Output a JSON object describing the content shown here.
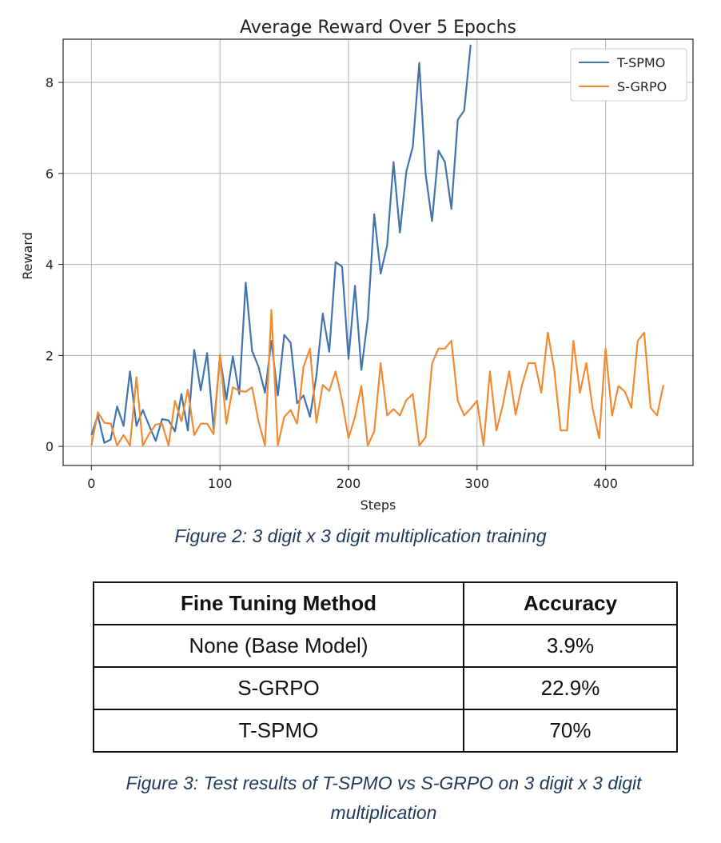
{
  "chart_data": {
    "type": "line",
    "title": "Average Reward Over 5 Epochs",
    "xlabel": "Steps",
    "ylabel": "Reward",
    "xlim": [
      -22,
      468
    ],
    "ylim": [
      -0.42,
      8.95
    ],
    "xticks": [
      0,
      100,
      200,
      300,
      400
    ],
    "yticks": [
      0,
      2,
      4,
      6,
      8
    ],
    "grid": true,
    "legend": "top-right",
    "series": [
      {
        "name": "T-SPMO",
        "color": "#3f74b0",
        "x": [
          0,
          5,
          10,
          15,
          20,
          25,
          30,
          35,
          40,
          45,
          50,
          55,
          60,
          65,
          70,
          75,
          80,
          85,
          90,
          95,
          100,
          105,
          110,
          115,
          120,
          125,
          130,
          135,
          140,
          145,
          150,
          155,
          160,
          165,
          170,
          175,
          180,
          185,
          190,
          195,
          200,
          205,
          210,
          215,
          220,
          225,
          230,
          235,
          240,
          245,
          250,
          255,
          260,
          265,
          270,
          275,
          280,
          285,
          290,
          295
        ],
        "values": [
          0.25,
          0.68,
          0.08,
          0.15,
          0.88,
          0.45,
          1.65,
          0.45,
          0.8,
          0.45,
          0.12,
          0.6,
          0.57,
          0.33,
          1.15,
          0.35,
          2.12,
          1.23,
          2.05,
          0.38,
          1.98,
          1.03,
          1.98,
          1.15,
          3.6,
          2.1,
          1.75,
          1.18,
          2.32,
          1.12,
          2.45,
          2.28,
          0.95,
          1.12,
          0.65,
          1.55,
          2.92,
          2.08,
          4.05,
          3.95,
          1.92,
          3.53,
          1.68,
          2.8,
          5.1,
          3.8,
          4.42,
          6.25,
          4.7,
          6.05,
          6.58,
          8.43,
          5.98,
          4.95,
          6.5,
          6.25,
          5.22,
          7.18,
          7.38,
          8.83
        ]
      },
      {
        "name": "S-GRPO",
        "color": "#f28a32",
        "x": [
          0,
          5,
          10,
          15,
          20,
          25,
          30,
          35,
          40,
          45,
          50,
          55,
          60,
          65,
          70,
          75,
          80,
          85,
          90,
          95,
          100,
          105,
          110,
          115,
          120,
          125,
          130,
          135,
          140,
          145,
          150,
          155,
          160,
          165,
          170,
          175,
          180,
          185,
          190,
          195,
          200,
          205,
          210,
          215,
          220,
          225,
          230,
          235,
          240,
          245,
          250,
          255,
          260,
          265,
          270,
          275,
          280,
          285,
          290,
          295,
          300,
          305,
          310,
          315,
          320,
          325,
          330,
          335,
          340,
          345,
          350,
          355,
          360,
          365,
          370,
          375,
          380,
          385,
          390,
          395,
          400,
          405,
          410,
          415,
          420,
          425,
          430,
          435,
          440,
          445
        ],
        "values": [
          0.02,
          0.75,
          0.52,
          0.5,
          0.02,
          0.25,
          0.02,
          1.52,
          0.02,
          0.28,
          0.48,
          0.5,
          0.02,
          1.0,
          0.55,
          1.25,
          0.25,
          0.5,
          0.5,
          0.27,
          2.02,
          0.5,
          1.3,
          1.22,
          1.2,
          1.3,
          0.55,
          0.02,
          3.0,
          0.02,
          0.65,
          0.8,
          0.5,
          1.75,
          2.15,
          0.52,
          1.35,
          1.22,
          1.65,
          1.0,
          0.18,
          0.65,
          1.33,
          0.02,
          0.33,
          1.83,
          0.68,
          0.82,
          0.68,
          1.02,
          1.15,
          0.02,
          0.2,
          1.82,
          2.15,
          2.15,
          2.32,
          1.0,
          0.68,
          0.83,
          1.0,
          0.02,
          1.65,
          0.35,
          0.9,
          1.65,
          0.7,
          1.35,
          1.83,
          1.83,
          1.18,
          2.5,
          1.7,
          0.35,
          0.35,
          2.32,
          1.18,
          1.83,
          0.82,
          0.18,
          2.15,
          0.68,
          1.33,
          1.2,
          0.85,
          2.32,
          2.5,
          0.85,
          0.68,
          1.35
        ]
      }
    ]
  },
  "captions": {
    "fig2": "Figure 2: 3 digit x 3 digit multiplication training",
    "fig3": "Figure 3: Test results of T-SPMO vs S-GRPO on 3 digit x 3 digit multiplication"
  },
  "results_table": {
    "headers": [
      "Fine Tuning Method",
      "Accuracy"
    ],
    "rows": [
      [
        "None (Base Model)",
        "3.9%"
      ],
      [
        "S-GRPO",
        "22.9%"
      ],
      [
        "T-SPMO",
        "70%"
      ]
    ]
  }
}
